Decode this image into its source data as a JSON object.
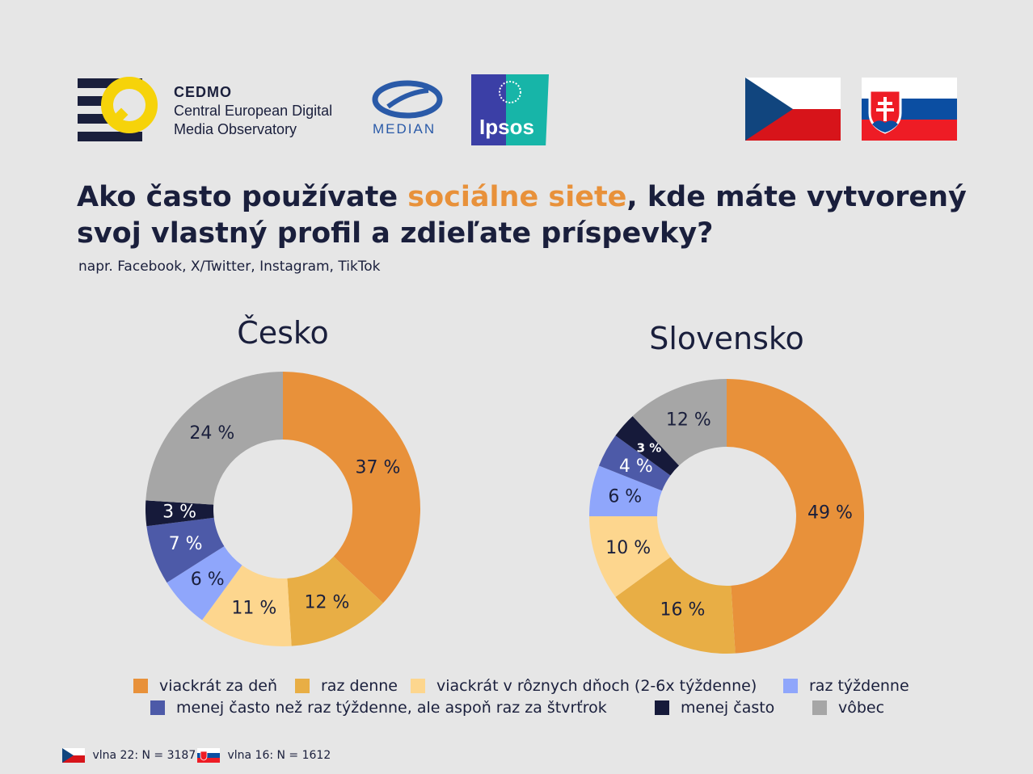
{
  "header": {
    "cedmo_short": "CEDMO",
    "cedmo_line1": "Central European Digital",
    "cedmo_line2": "Media Observatory",
    "median_label": "MEDIAN",
    "ipsos_label": "Ipsos"
  },
  "title": {
    "part1": "Ako často používate ",
    "highlight": "sociálne siete",
    "part2": ", kde máte vytvorený svoj vlastný profil a zdieľate príspevky?",
    "subtitle": "napr. Facebook, X/Twitter, Instagram, TikTok",
    "highlight_color": "#e8913a"
  },
  "legend": [
    {
      "label": "viackrát za deň",
      "color": "#e8913a"
    },
    {
      "label": "raz denne",
      "color": "#e8ae45"
    },
    {
      "label": "viackrát v rôznych dňoch (2-6x týždenne)",
      "color": "#fdd68e"
    },
    {
      "label": "raz týždenne",
      "color": "#8fa6fb"
    },
    {
      "label": "menej často než raz týždenne, ale aspoň raz za štvrťrok",
      "color": "#4d5aa8"
    },
    {
      "label": "menej často",
      "color": "#161a3a"
    },
    {
      "label": "vôbec",
      "color": "#a6a6a6"
    }
  ],
  "chart_data": [
    {
      "type": "pie",
      "title": "Česko",
      "categories": [
        "viackrát za deň",
        "raz denne",
        "viackrát v rôznych dňoch (2-6x týždenne)",
        "raz týždenne",
        "menej často než raz týždenne, ale aspoň raz za štvrťrok",
        "menej často",
        "vôbec"
      ],
      "values": [
        37,
        12,
        11,
        6,
        7,
        3,
        24
      ],
      "labels": [
        "37 %",
        "12 %",
        "11 %",
        "6 %",
        "7 %",
        "3 %",
        "24 %"
      ],
      "colors": [
        "#e8913a",
        "#e8ae45",
        "#fdd68e",
        "#8fa6fb",
        "#4d5aa8",
        "#161a3a",
        "#a6a6a6"
      ]
    },
    {
      "type": "pie",
      "title": "Slovensko",
      "categories": [
        "viackrát za deň",
        "raz denne",
        "viackrát v rôznych dňoch (2-6x týždenne)",
        "raz týždenne",
        "menej často než raz týždenne, ale aspoň raz za štvrťrok",
        "menej často",
        "vôbec"
      ],
      "values": [
        49,
        16,
        10,
        6,
        4,
        3,
        12
      ],
      "labels": [
        "49 %",
        "16 %",
        "10 %",
        "6 %",
        "4 %",
        "3 %",
        "12 %"
      ],
      "colors": [
        "#e8913a",
        "#e8ae45",
        "#fdd68e",
        "#8fa6fb",
        "#4d5aa8",
        "#161a3a",
        "#a6a6a6"
      ]
    }
  ],
  "footer": {
    "cz_note": "vlna 22: N = 3187",
    "sk_note": "vlna 16: N = 1612"
  }
}
